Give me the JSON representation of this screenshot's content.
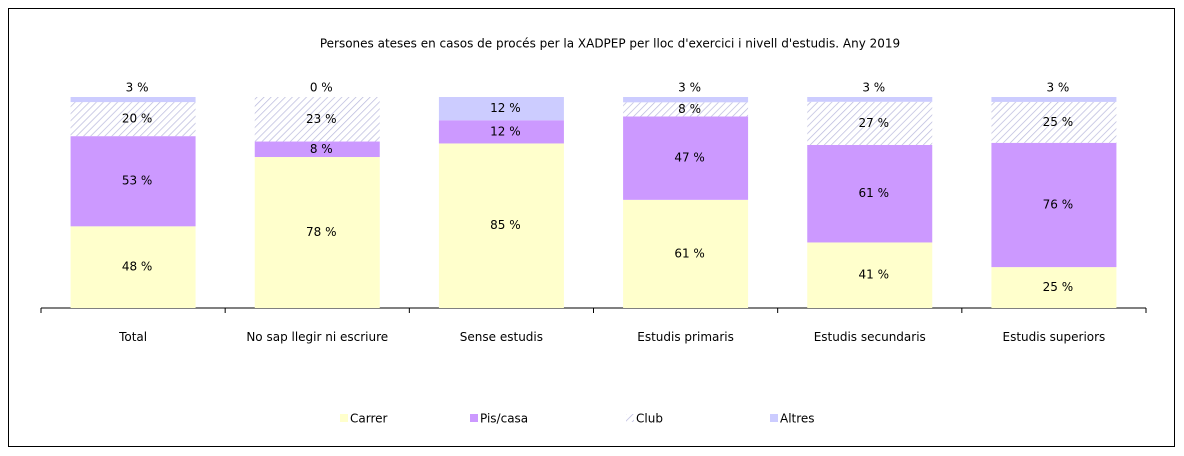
{
  "chart_data": {
    "type": "stacked-bar-100",
    "title": "Persones ateses en casos de procés per la XADPEP per lloc d'exercici i nivell d'estudis. Any 2019",
    "categories": [
      "Total",
      "No sap llegir ni escriure",
      "Sense estudis",
      "Estudis primaris",
      "Estudis secundaris",
      "Estudis superiors"
    ],
    "series": [
      {
        "name": "Carrer",
        "color": "#ffffcc",
        "values": [
          48,
          78,
          85,
          61,
          41,
          25
        ],
        "value_labels": [
          "48 %",
          "78 %",
          "85 %",
          "61 %",
          "41 %",
          "25 %"
        ]
      },
      {
        "name": "Pis/casa",
        "color": "#cc99ff",
        "values": [
          53,
          8,
          12,
          47,
          61,
          76
        ],
        "value_labels": [
          "53 %",
          "8 %",
          "12 %",
          "47 %",
          "61 %",
          "76 %"
        ]
      },
      {
        "name": "Club",
        "color": "#b8b8dc",
        "pattern": "hatch",
        "values": [
          20,
          23,
          null,
          8,
          27,
          25
        ],
        "value_labels": [
          "20 %",
          "23 %",
          null,
          "8 %",
          "27 %",
          "25 %"
        ]
      },
      {
        "name": "Altres",
        "color": "#ccccff",
        "values": [
          3,
          0,
          12,
          3,
          3,
          3
        ],
        "value_labels": [
          "3 %",
          "0 %",
          "12 %",
          "3 %",
          "3 %",
          "3 %"
        ]
      }
    ],
    "legend": "bottom"
  }
}
